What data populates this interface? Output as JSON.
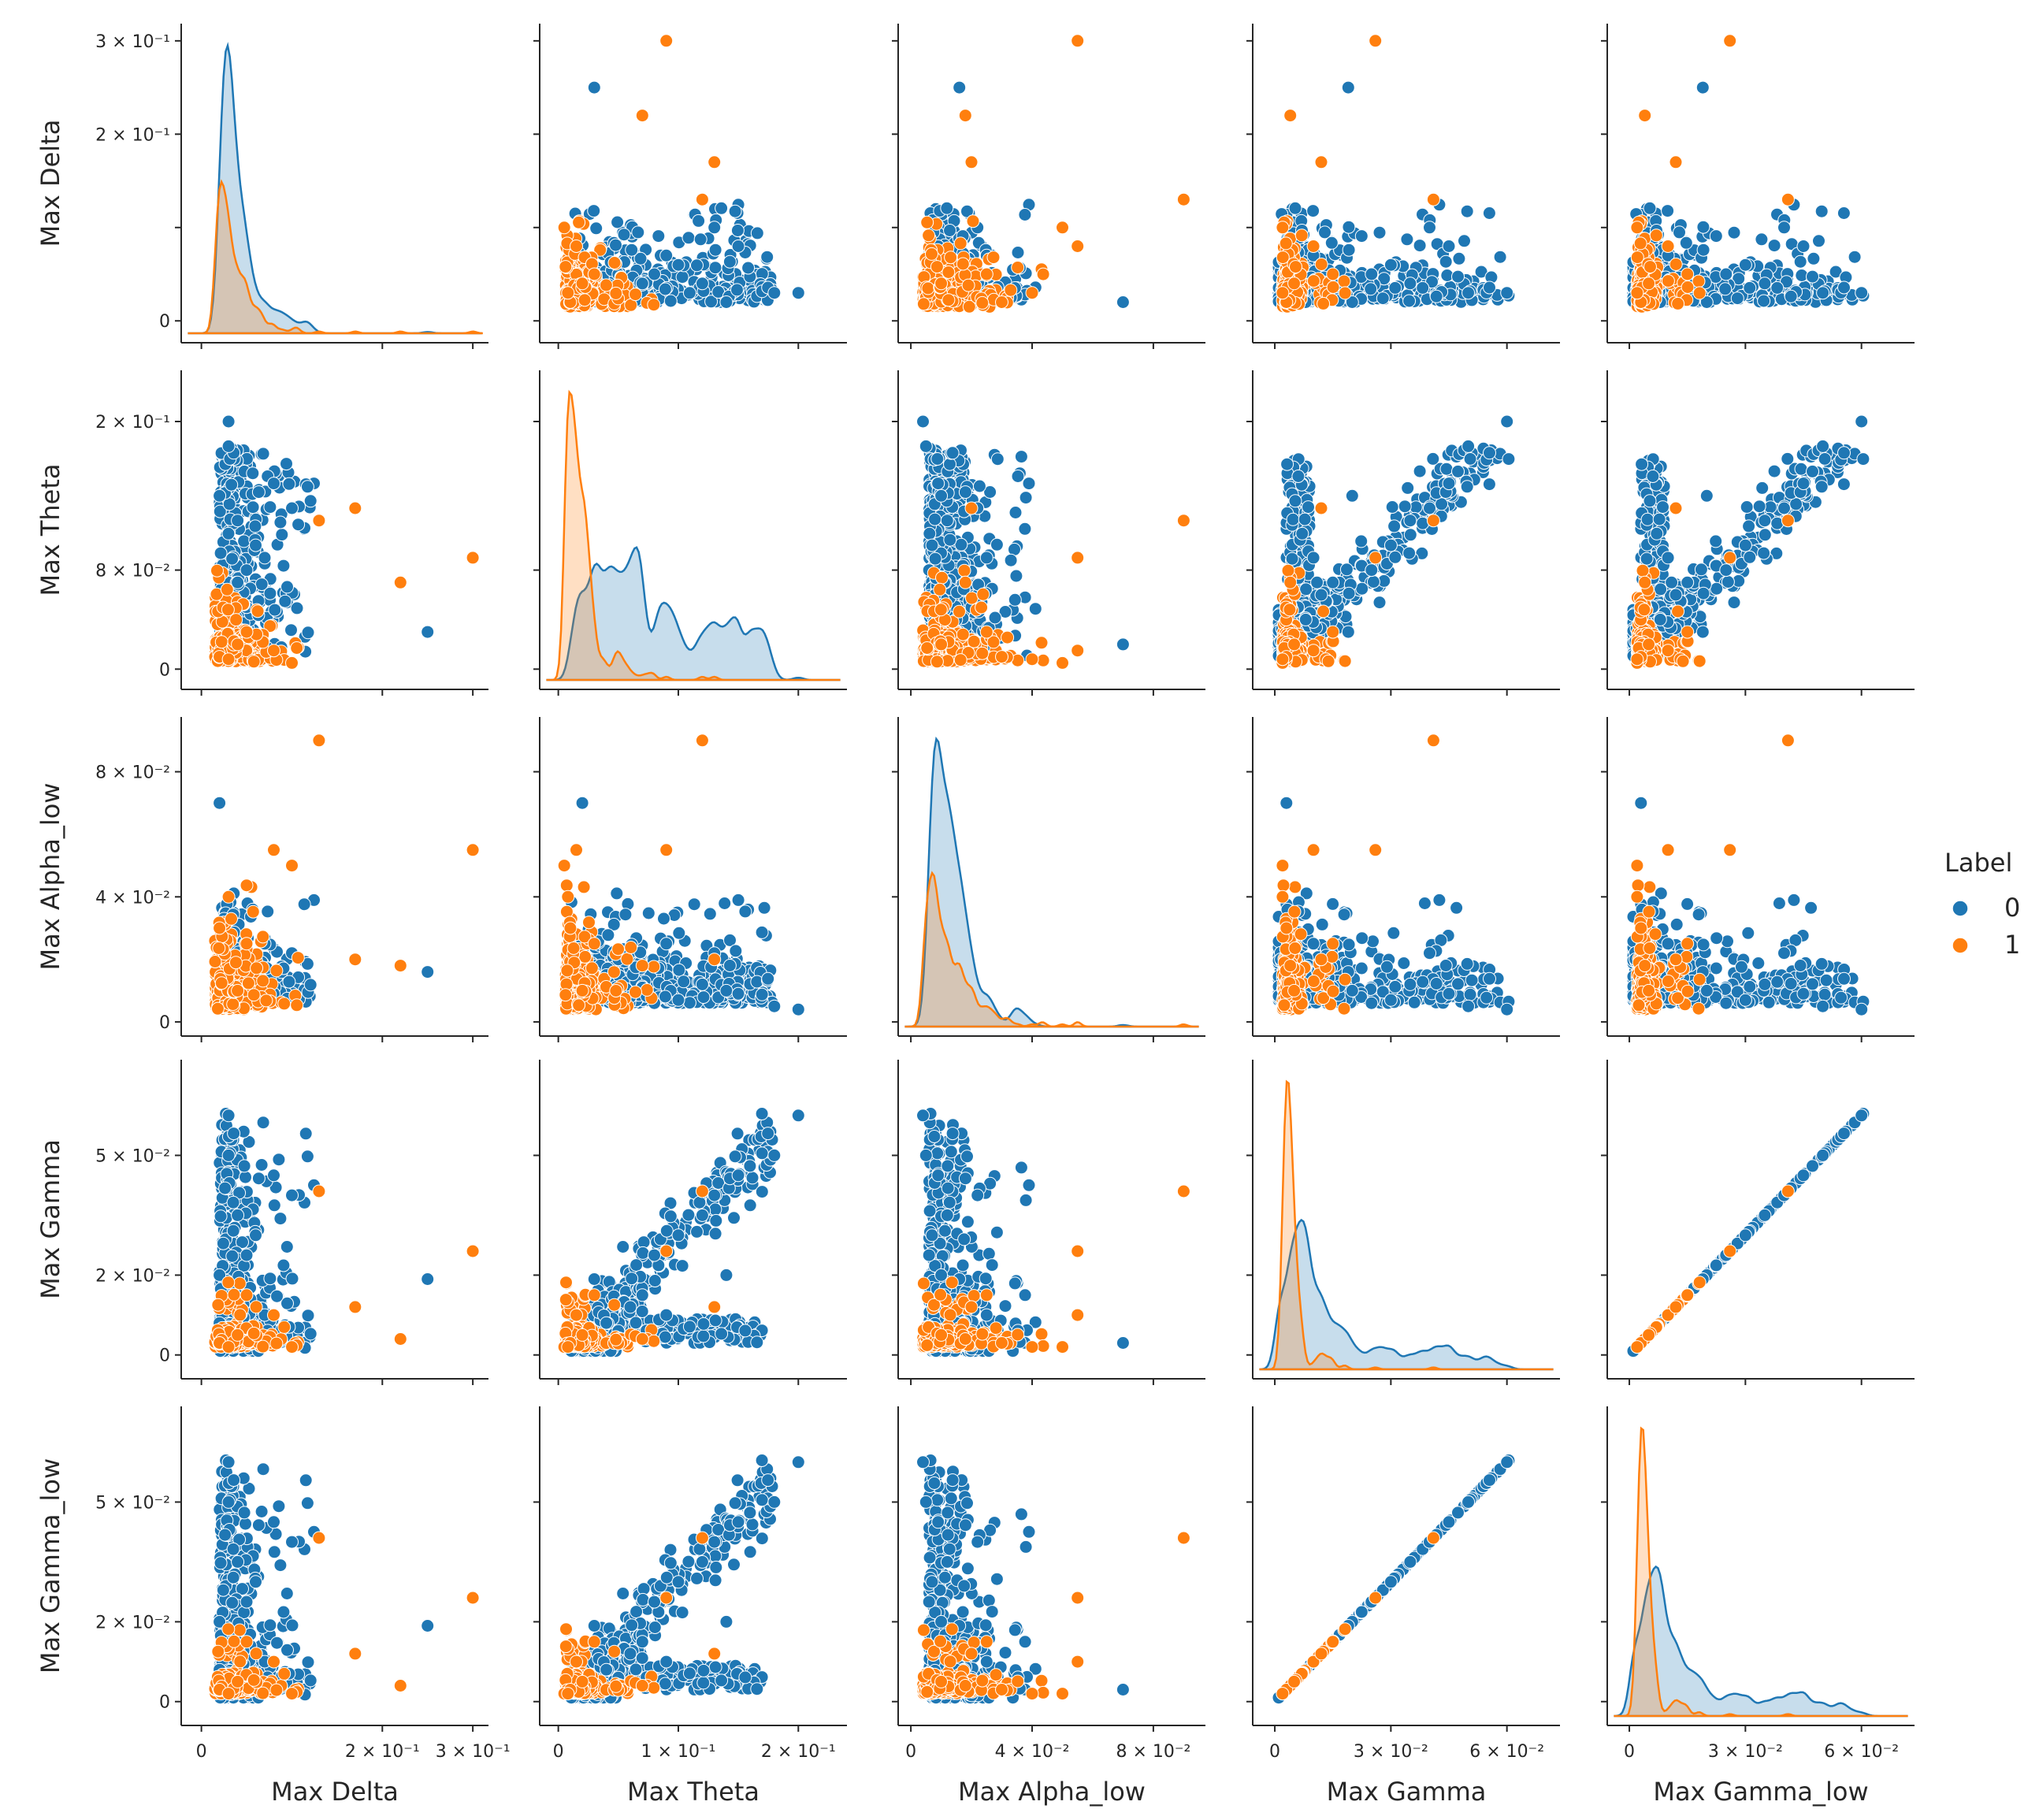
{
  "chart_data": {
    "type": "scatter",
    "kind": "pairplot",
    "variables": [
      "Max Delta",
      "Max Theta",
      "Max Alpha_low",
      "Max Gamma",
      "Max Gamma_low"
    ],
    "hue": "Label",
    "legend": {
      "title": "Label",
      "position": "right",
      "entries": [
        {
          "label": "0",
          "color": "#1f77b4"
        },
        {
          "label": "1",
          "color": "#ff7f0e"
        }
      ]
    },
    "colors": {
      "0": "#1f77b4",
      "1": "#ff7f0e",
      "overlap": "#8c8c8c"
    },
    "axes": [
      {
        "name": "Max Delta",
        "range": [
          -0.015,
          0.31
        ],
        "ticks": [
          {
            "v": 0,
            "label": "0"
          },
          {
            "v": 0.1,
            "label": ""
          },
          {
            "v": 0.2,
            "label": "2 × 10⁻¹"
          },
          {
            "v": 0.3,
            "label": "3 × 10⁻¹"
          }
        ]
      },
      {
        "name": "Max Theta",
        "range": [
          -0.01,
          0.235
        ],
        "ticks": [
          {
            "v": 0,
            "label": "0"
          },
          {
            "v": 0.08,
            "label": "8 × 10⁻²"
          },
          {
            "v": 0.2,
            "label": "2 × 10⁻¹"
          }
        ]
      },
      {
        "name": "Max Alpha_low",
        "range": [
          -0.002,
          0.095
        ],
        "ticks": [
          {
            "v": 0,
            "label": "0"
          },
          {
            "v": 0.04,
            "label": "4 × 10⁻²"
          },
          {
            "v": 0.08,
            "label": "8 × 10⁻²"
          }
        ]
      },
      {
        "name": "Max Gamma",
        "range": [
          -0.004,
          0.072
        ],
        "ticks": [
          {
            "v": 0,
            "label": "0"
          },
          {
            "v": 0.02,
            "label": "2 × 10⁻²"
          },
          {
            "v": 0.05,
            "label": "5 × 10⁻²"
          }
        ]
      },
      {
        "name": "Max Gamma_low",
        "range": [
          -0.004,
          0.072
        ],
        "ticks": [
          {
            "v": 0,
            "label": "0"
          },
          {
            "v": 0.02,
            "label": "2 × 10⁻²"
          },
          {
            "v": 0.05,
            "label": "5 × 10⁻²"
          }
        ]
      }
    ],
    "x_ticks": [
      [
        {
          "v": 0,
          "label": "0"
        },
        {
          "v": 0.2,
          "label": "2 × 10⁻¹"
        },
        {
          "v": 0.3,
          "label": "3 × 10⁻¹"
        }
      ],
      [
        {
          "v": 0,
          "label": "0"
        },
        {
          "v": 0.1,
          "label": "1 × 10⁻¹"
        },
        {
          "v": 0.2,
          "label": "2 × 10⁻¹"
        }
      ],
      [
        {
          "v": 0,
          "label": "0"
        },
        {
          "v": 0.04,
          "label": "4 × 10⁻²"
        },
        {
          "v": 0.08,
          "label": "8 × 10⁻²"
        }
      ],
      [
        {
          "v": 0,
          "label": "0"
        },
        {
          "v": 0.03,
          "label": "3 × 10⁻²"
        },
        {
          "v": 0.06,
          "label": "6 × 10⁻²"
        }
      ],
      [
        {
          "v": 0,
          "label": "0"
        },
        {
          "v": 0.03,
          "label": "3 × 10⁻²"
        },
        {
          "v": 0.06,
          "label": "6 × 10⁻²"
        }
      ]
    ],
    "sample_points": {
      "label_0": [
        [
          0.02,
          0.14,
          0.01,
          0.02,
          0.02
        ],
        [
          0.03,
          0.06,
          0.008,
          0.012,
          0.012
        ],
        [
          0.05,
          0.08,
          0.006,
          0.025,
          0.025
        ],
        [
          0.04,
          0.12,
          0.012,
          0.035,
          0.035
        ],
        [
          0.02,
          0.04,
          0.015,
          0.008,
          0.008
        ],
        [
          0.06,
          0.1,
          0.007,
          0.03,
          0.03
        ],
        [
          0.03,
          0.18,
          0.005,
          0.05,
          0.05
        ],
        [
          0.05,
          0.05,
          0.02,
          0.006,
          0.006
        ],
        [
          0.08,
          0.15,
          0.009,
          0.045,
          0.045
        ],
        [
          0.04,
          0.07,
          0.011,
          0.015,
          0.015
        ],
        [
          0.25,
          0.03,
          0.016,
          0.019,
          0.019
        ],
        [
          0.03,
          0.2,
          0.004,
          0.06,
          0.06
        ],
        [
          0.02,
          0.02,
          0.07,
          0.003,
          0.003
        ],
        [
          0.07,
          0.09,
          0.025,
          0.01,
          0.01
        ],
        [
          0.1,
          0.13,
          0.022,
          0.04,
          0.04
        ]
      ],
      "label_1": [
        [
          0.1,
          0.005,
          0.05,
          0.002,
          0.002
        ],
        [
          0.08,
          0.015,
          0.055,
          0.01,
          0.01
        ],
        [
          0.13,
          0.12,
          0.09,
          0.041,
          0.041
        ],
        [
          0.3,
          0.09,
          0.055,
          0.026,
          0.026
        ],
        [
          0.22,
          0.07,
          0.018,
          0.004,
          0.004
        ],
        [
          0.17,
          0.13,
          0.02,
          0.012,
          0.012
        ],
        [
          0.02,
          0.01,
          0.03,
          0.003,
          0.003
        ],
        [
          0.04,
          0.02,
          0.01,
          0.005,
          0.005
        ],
        [
          0.03,
          0.008,
          0.04,
          0.002,
          0.002
        ],
        [
          0.05,
          0.03,
          0.025,
          0.015,
          0.015
        ]
      ]
    }
  }
}
